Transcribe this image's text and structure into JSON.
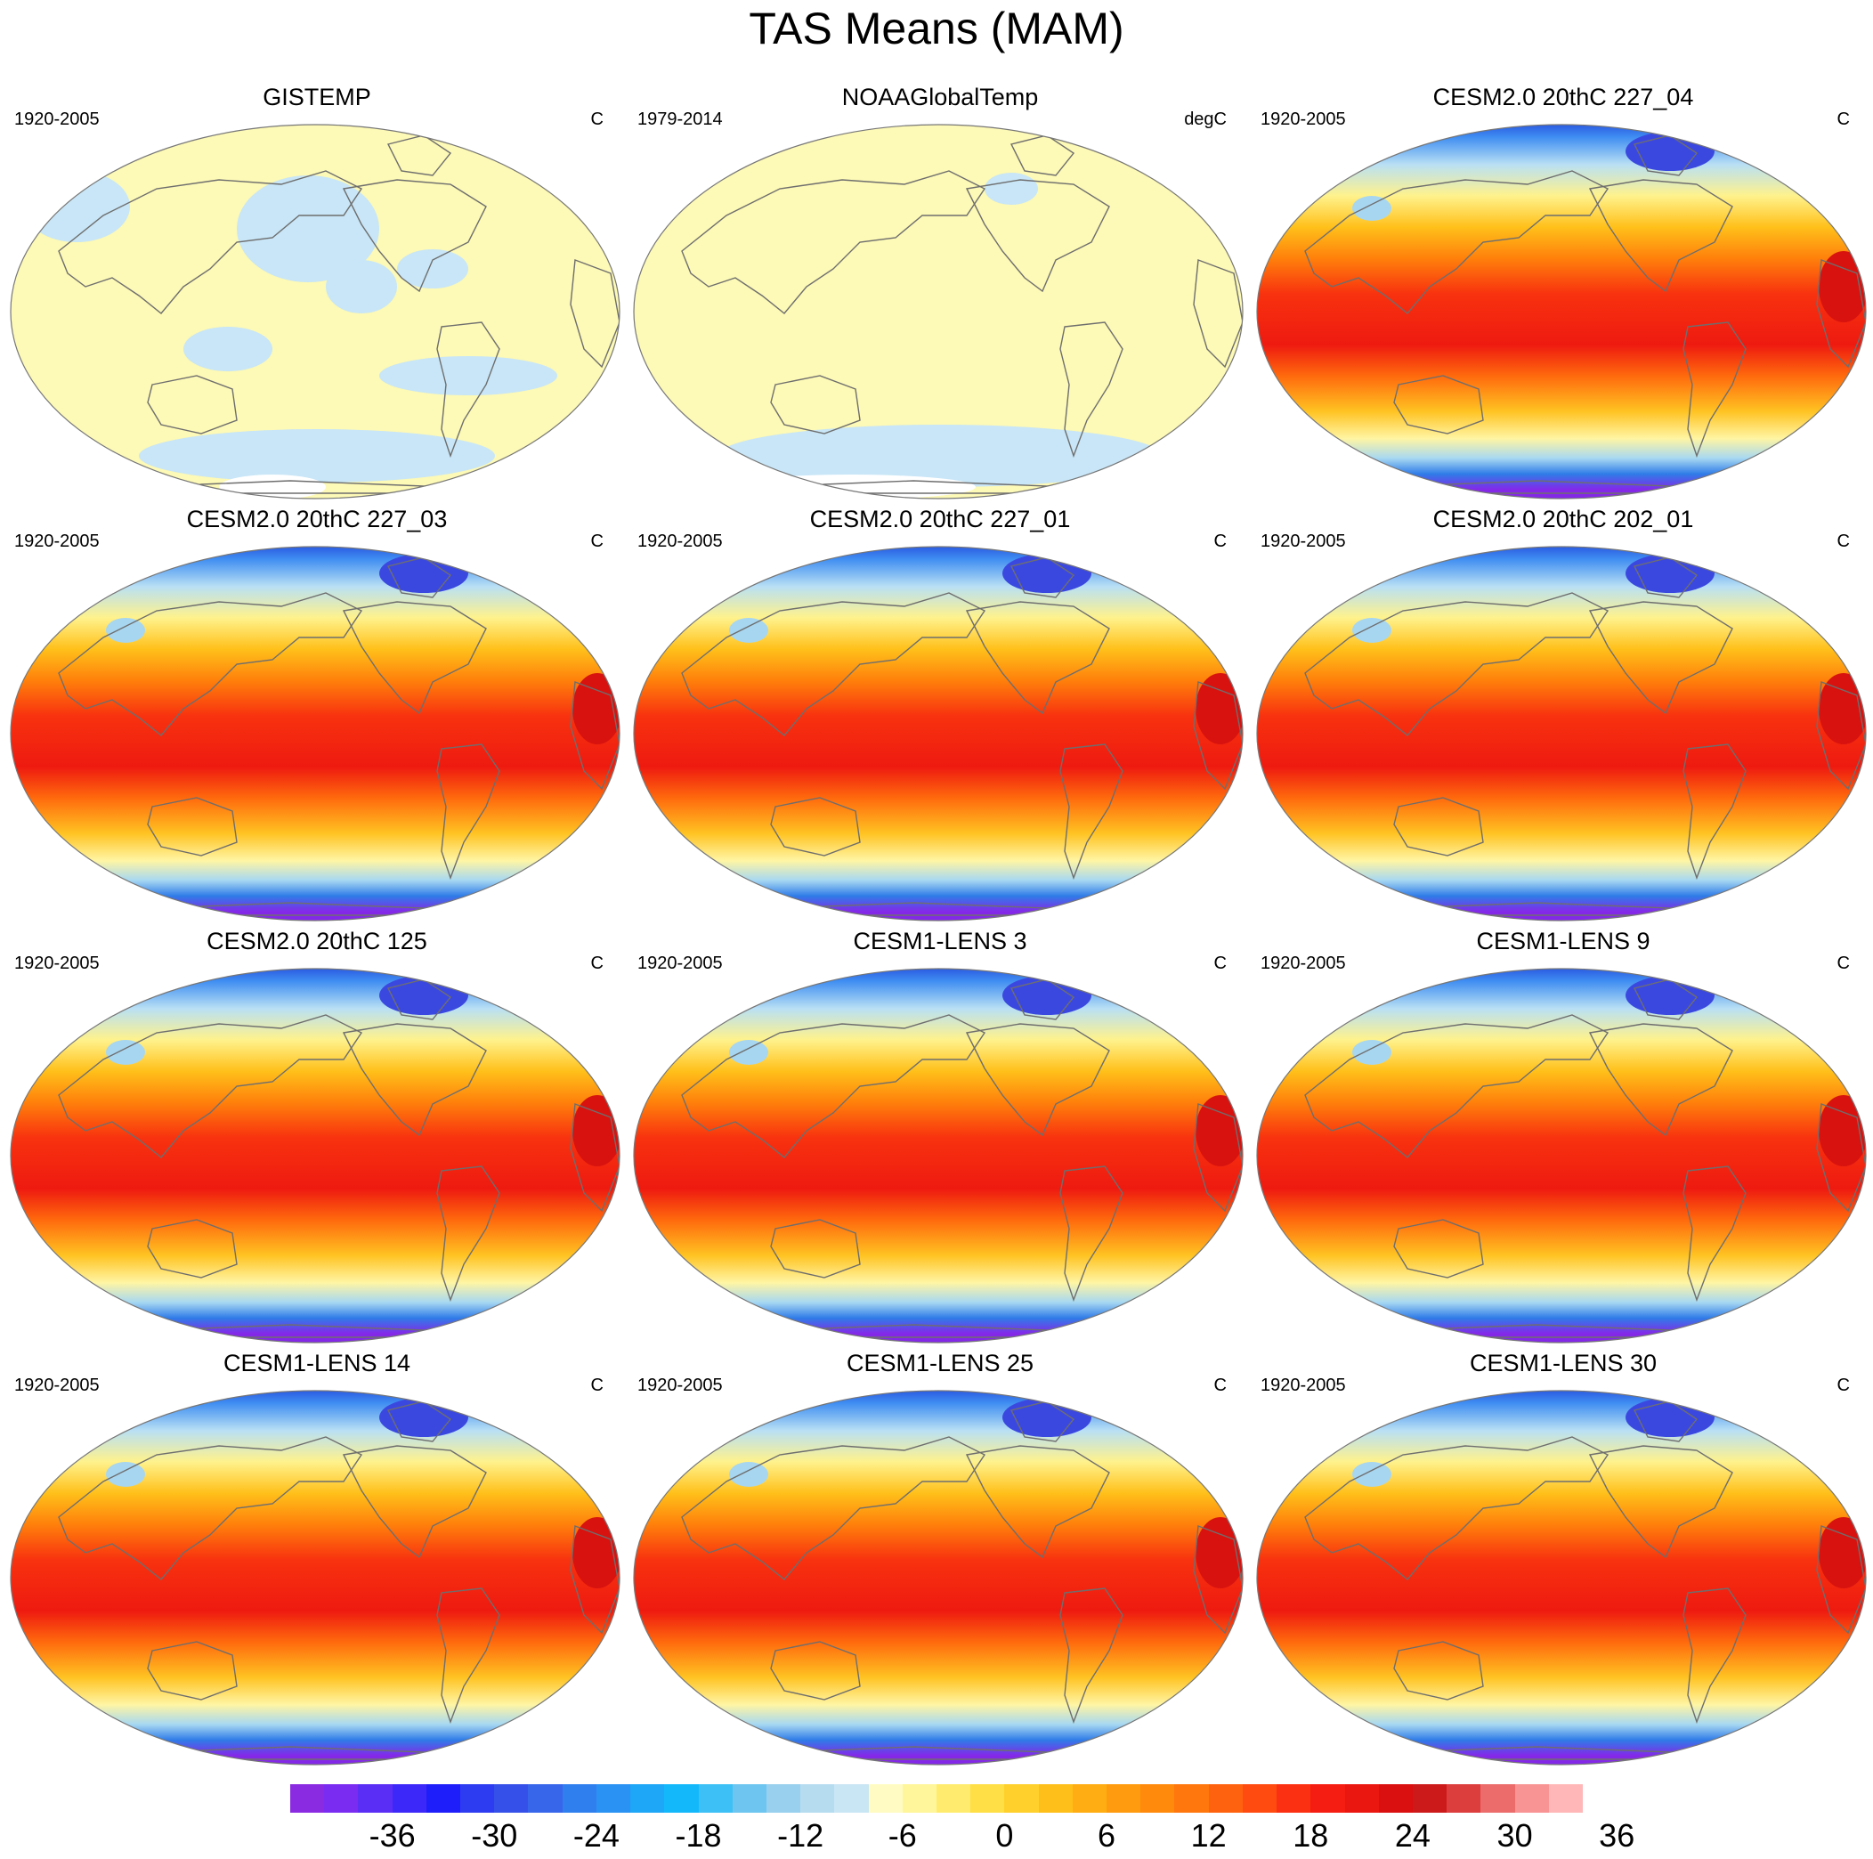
{
  "title": "TAS Means (MAM)",
  "colors": {
    "model_field": "warm_gradient",
    "land_outline": "#6e6e6e",
    "observation_field": "#fdf9b6",
    "observation_cold": "#c8e6f7"
  },
  "panels": [
    {
      "title": "GISTEMP",
      "left_label": "1920-2005",
      "right_label": "C",
      "kind": "obs",
      "variant": 0
    },
    {
      "title": "NOAAGlobalTemp",
      "left_label": "1979-2014",
      "right_label": "degC",
      "kind": "obs",
      "variant": 1
    },
    {
      "title": "CESM2.0 20thC 227_04",
      "left_label": "1920-2005",
      "right_label": "C",
      "kind": "model",
      "variant": 0
    },
    {
      "title": "CESM2.0 20thC 227_03",
      "left_label": "1920-2005",
      "right_label": "C",
      "kind": "model",
      "variant": 1
    },
    {
      "title": "CESM2.0 20thC 227_01",
      "left_label": "1920-2005",
      "right_label": "C",
      "kind": "model",
      "variant": 2
    },
    {
      "title": "CESM2.0 20thC 202_01",
      "left_label": "1920-2005",
      "right_label": "C",
      "kind": "model",
      "variant": 3
    },
    {
      "title": "CESM2.0 20thC 125",
      "left_label": "1920-2005",
      "right_label": "C",
      "kind": "model",
      "variant": 4
    },
    {
      "title": "CESM1-LENS 3",
      "left_label": "1920-2005",
      "right_label": "C",
      "kind": "model",
      "variant": 5
    },
    {
      "title": "CESM1-LENS 9",
      "left_label": "1920-2005",
      "right_label": "C",
      "kind": "model",
      "variant": 6
    },
    {
      "title": "CESM1-LENS 14",
      "left_label": "1920-2005",
      "right_label": "C",
      "kind": "model",
      "variant": 7
    },
    {
      "title": "CESM1-LENS 25",
      "left_label": "1920-2005",
      "right_label": "C",
      "kind": "model",
      "variant": 8
    },
    {
      "title": "CESM1-LENS 30",
      "left_label": "1920-2005",
      "right_label": "C",
      "kind": "model",
      "variant": 9
    }
  ],
  "colorbar": {
    "colors": [
      "#8a2be2",
      "#7a2df0",
      "#5a2ef5",
      "#3c28f8",
      "#1e1efa",
      "#2d3cf0",
      "#3550e8",
      "#3866ea",
      "#2f7fee",
      "#2a92f3",
      "#1ea6f7",
      "#13b8fb",
      "#3dc0f5",
      "#6ec6f0",
      "#98d0ee",
      "#b6dcf0",
      "#c9e6f4",
      "#fffbc2",
      "#fff59a",
      "#ffec6e",
      "#ffde46",
      "#ffd02b",
      "#ffbf1a",
      "#ffad12",
      "#ff9b0e",
      "#ff8a0c",
      "#ff770d",
      "#ff620f",
      "#ff4a10",
      "#fb3012",
      "#f51d11",
      "#ea1610",
      "#da0f0f",
      "#cc1a1a",
      "#dc3e3e",
      "#ec6c6c",
      "#f99494",
      "#ffb7b7"
    ],
    "tick_labels": [
      "-36",
      "-30",
      "-24",
      "-18",
      "-12",
      "-6",
      "0",
      "6",
      "12",
      "18",
      "24",
      "30",
      "36"
    ]
  }
}
